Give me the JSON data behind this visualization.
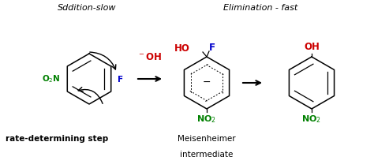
{
  "title_left": "Sddition-slow",
  "title_right": "Elimination - fast",
  "label_bottom_left": "rate-determining step",
  "label_bottom_mid": "Meisenheimer",
  "label_bottom_mid2": "intermediate",
  "bg_color": "#ffffff",
  "black": "#000000",
  "red": "#cc0000",
  "green": "#008000",
  "blue": "#0000cc",
  "figsize": [
    4.74,
    2.13
  ],
  "dpi": 100
}
